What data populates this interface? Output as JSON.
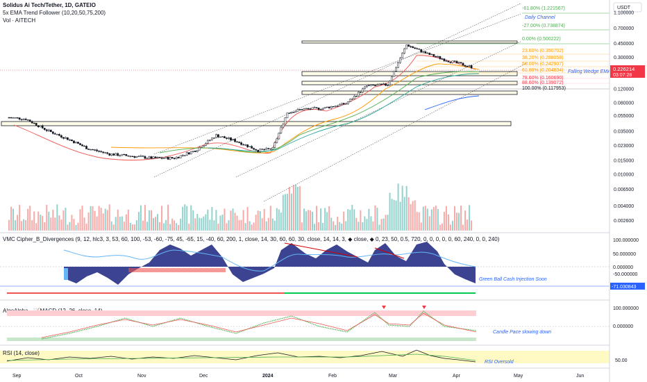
{
  "header": {
    "symbol_title": "Solidus Ai Tech/Tether, 1D, GATEIO",
    "indicator_ema": "5x EMA Trend Follower (10,20,50,75,200)",
    "indicator_vol": "Vol · AITECH"
  },
  "currency": "USDT",
  "last_price": {
    "value": "0.226214",
    "countdown": "03:07:28",
    "color": "#f23645"
  },
  "price_axis": {
    "ticks": [
      "1.100000",
      "0.700000",
      "0.450000",
      "0.300000",
      "0.200000",
      "0.120000",
      "0.080000",
      "0.055000",
      "0.035000",
      "0.023000",
      "0.015000",
      "0.010000",
      "0.006500",
      "0.004000",
      "0.002600"
    ]
  },
  "fib_levels": [
    {
      "label": "-61.80% (1.221567)",
      "color": "#4caf50"
    },
    {
      "label": "-27.00% (0.738874)",
      "color": "#4caf50"
    },
    {
      "label": "0.00% (0.500222)",
      "color": "#4caf50"
    },
    {
      "label": "23.60% (0.350702)",
      "color": "#ff9800"
    },
    {
      "label": "38.20% (0.288058)",
      "color": "#ff9800"
    },
    {
      "label": "50.00% (0.242907)",
      "color": "#ff9800"
    },
    {
      "label": "61.80% (0.204834)",
      "color": "#ff9800"
    },
    {
      "label": "78.60% (0.160690)",
      "color": "#f23645"
    },
    {
      "label": "88.60% (0.139072)",
      "color": "#f23645"
    },
    {
      "label": "100.00% (0.117953)",
      "color": "#131722"
    }
  ],
  "annotations": {
    "daily_channel": "Daily Channel",
    "falling_wedge": "Falling Wedge EMA",
    "green_ball": "Green Ball Cash Injection Soon",
    "candle_pace": "Candle Pace slowing down",
    "rsi_oversold": "RSI Oversold"
  },
  "panes": {
    "vmc": {
      "title": "VMC Cipher_B_Divergences (9, 12, hlc3, 3, 53, 60, 100, -53, -60, -75, 45, -65, 15, -40, 60, 200, 1, close, 14, 30, 60, 60, 30, close, 14, 14, 3, ◆ close, ◆ 0, 23, 50, 0.5, 720, 0, 0, 0, 0, 0, 60, 240, 0, 0, 240)",
      "ticks": [
        "100.000000",
        "50.000000",
        "0.000000",
        "-50.000000"
      ],
      "value": "-71.030843"
    },
    "macd": {
      "title": "AlgoAlpha - 📈MACD (12, 26, close, 14)",
      "ticks": [
        "100.000000",
        "0.000000"
      ]
    },
    "rsi": {
      "title": "RSI (14, close)",
      "ticks": [
        "50.00"
      ]
    }
  },
  "time_axis": [
    "Sep",
    "Oct",
    "Nov",
    "Dec",
    "2024",
    "Feb",
    "Mar",
    "Apr",
    "May",
    "Jun"
  ],
  "chart_data": {
    "type": "candlestick",
    "title": "Solidus Ai Tech/Tether, 1D, GATEIO",
    "price_scale": "log",
    "y_range": [
      0.0022,
      1.4
    ],
    "x_range": [
      "2023-08-25",
      "2024-06-10"
    ],
    "candles": [
      {
        "date": "2023-08-28",
        "price": 0.052
      },
      {
        "date": "2023-09-05",
        "price": 0.05
      },
      {
        "date": "2023-09-15",
        "price": 0.036
      },
      {
        "date": "2023-09-25",
        "price": 0.028
      },
      {
        "date": "2023-10-05",
        "price": 0.021
      },
      {
        "date": "2023-10-15",
        "price": 0.018
      },
      {
        "date": "2023-10-25",
        "price": 0.017
      },
      {
        "date": "2023-11-05",
        "price": 0.016
      },
      {
        "date": "2023-11-15",
        "price": 0.016
      },
      {
        "date": "2023-11-25",
        "price": 0.02
      },
      {
        "date": "2023-12-05",
        "price": 0.031
      },
      {
        "date": "2023-12-15",
        "price": 0.026
      },
      {
        "date": "2023-12-25",
        "price": 0.02
      },
      {
        "date": "2024-01-01",
        "price": 0.021
      },
      {
        "date": "2024-01-08",
        "price": 0.06
      },
      {
        "date": "2024-01-15",
        "price": 0.066
      },
      {
        "date": "2024-01-25",
        "price": 0.068
      },
      {
        "date": "2024-02-05",
        "price": 0.078
      },
      {
        "date": "2024-02-15",
        "price": 0.13
      },
      {
        "date": "2024-02-25",
        "price": 0.135
      },
      {
        "date": "2024-03-05",
        "price": 0.43
      },
      {
        "date": "2024-03-15",
        "price": 0.33
      },
      {
        "date": "2024-03-25",
        "price": 0.27
      },
      {
        "date": "2024-04-05",
        "price": 0.226
      }
    ],
    "volume_color_up": "#26a69a",
    "volume_color_down": "#ef5350"
  }
}
